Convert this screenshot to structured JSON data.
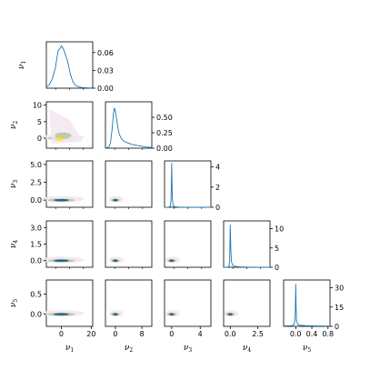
{
  "chart_data": {
    "type": "corner",
    "variables": [
      {
        "label": "ν",
        "sub": "1"
      },
      {
        "label": "ν",
        "sub": "2"
      },
      {
        "label": "ν",
        "sub": "3"
      },
      {
        "label": "ν",
        "sub": "4"
      },
      {
        "label": "ν",
        "sub": "5"
      }
    ],
    "colors": {
      "line": "#1f77b4",
      "density_low": "#f3e6ee",
      "density_mid": "#b7c9a5",
      "density_high": "#1f5f8b",
      "density_peak": "#fde725"
    },
    "diagonal": [
      {
        "variable": 1,
        "xlim": [
          -10,
          21
        ],
        "ylim": [
          0,
          0.078
        ],
        "y_ticks": [
          "0.06",
          "0.03",
          "0.00"
        ],
        "y_tick_values": [
          0.06,
          0.03,
          0.0
        ],
        "curve": [
          [
            -10,
            0.002
          ],
          [
            -8,
            0.006
          ],
          [
            -6,
            0.016
          ],
          [
            -4,
            0.034
          ],
          [
            -3,
            0.05
          ],
          [
            -2,
            0.064
          ],
          [
            -1,
            0.066
          ],
          [
            0,
            0.071
          ],
          [
            1,
            0.068
          ],
          [
            2,
            0.062
          ],
          [
            3,
            0.054
          ],
          [
            4,
            0.047
          ],
          [
            5,
            0.036
          ],
          [
            6,
            0.024
          ],
          [
            7,
            0.016
          ],
          [
            8,
            0.01
          ],
          [
            9,
            0.006
          ],
          [
            10,
            0.004
          ],
          [
            11,
            0.003
          ],
          [
            12,
            0.002
          ],
          [
            14,
            0.001
          ],
          [
            16,
            0.0008
          ],
          [
            18,
            0.0005
          ],
          [
            20,
            0.0003
          ]
        ]
      },
      {
        "variable": 2,
        "xlim": [
          -3,
          11
        ],
        "ylim": [
          0,
          0.75
        ],
        "y_ticks": [
          "0.50",
          "0.25",
          "0.00"
        ],
        "y_tick_values": [
          0.5,
          0.25,
          0.0
        ],
        "curve": [
          [
            -3,
            0.0
          ],
          [
            -2,
            0.02
          ],
          [
            -1.5,
            0.08
          ],
          [
            -1,
            0.3
          ],
          [
            -0.6,
            0.56
          ],
          [
            -0.3,
            0.65
          ],
          [
            0,
            0.6
          ],
          [
            0.4,
            0.46
          ],
          [
            0.8,
            0.32
          ],
          [
            1.2,
            0.22
          ],
          [
            2,
            0.14
          ],
          [
            3,
            0.1
          ],
          [
            4,
            0.08
          ],
          [
            5,
            0.06
          ],
          [
            6,
            0.05
          ],
          [
            7,
            0.04
          ],
          [
            8,
            0.03
          ],
          [
            9,
            0.02
          ],
          [
            10,
            0.015
          ],
          [
            11,
            0.01
          ]
        ]
      },
      {
        "variable": 3,
        "xlim": [
          -1,
          5.5
        ],
        "ylim": [
          0,
          4.6
        ],
        "y_ticks": [
          "4",
          "2",
          "0"
        ],
        "y_tick_values": [
          4,
          2,
          0
        ],
        "curve": [
          [
            -1,
            0.0
          ],
          [
            -0.4,
            0.02
          ],
          [
            -0.2,
            0.1
          ],
          [
            -0.1,
            0.6
          ],
          [
            -0.05,
            2.0
          ],
          [
            0,
            4.4
          ],
          [
            0.05,
            2.2
          ],
          [
            0.1,
            0.8
          ],
          [
            0.2,
            0.2
          ],
          [
            0.4,
            0.06
          ],
          [
            1,
            0.02
          ],
          [
            2,
            0.01
          ],
          [
            3,
            0.0
          ],
          [
            5.5,
            0.0
          ]
        ]
      },
      {
        "variable": 4,
        "xlim": [
          -0.6,
          3.6
        ],
        "ylim": [
          0,
          12
        ],
        "y_ticks": [
          "10",
          "5",
          "0"
        ],
        "y_tick_values": [
          10,
          5,
          0
        ],
        "curve": [
          [
            -0.6,
            0.0
          ],
          [
            -0.2,
            0.05
          ],
          [
            -0.1,
            0.4
          ],
          [
            -0.05,
            2.5
          ],
          [
            0,
            11.0
          ],
          [
            0.05,
            5.0
          ],
          [
            0.1,
            1.6
          ],
          [
            0.2,
            0.6
          ],
          [
            0.4,
            0.25
          ],
          [
            0.8,
            0.1
          ],
          [
            1.5,
            0.05
          ],
          [
            2.5,
            0.02
          ],
          [
            3.6,
            0.0
          ]
        ]
      },
      {
        "variable": 5,
        "xlim": [
          -0.3,
          0.85
        ],
        "ylim": [
          0,
          36
        ],
        "y_ticks": [
          "30",
          "15",
          "0"
        ],
        "y_tick_values": [
          30,
          15,
          0
        ],
        "curve": [
          [
            -0.3,
            0.3
          ],
          [
            -0.1,
            0.6
          ],
          [
            -0.05,
            1.2
          ],
          [
            -0.02,
            4.0
          ],
          [
            -0.01,
            12.0
          ],
          [
            0,
            33.0
          ],
          [
            0.01,
            14.0
          ],
          [
            0.02,
            5.0
          ],
          [
            0.05,
            1.5
          ],
          [
            0.1,
            0.8
          ],
          [
            0.3,
            0.5
          ],
          [
            0.6,
            0.3
          ],
          [
            0.85,
            0.2
          ]
        ]
      }
    ],
    "x_ticks": [
      {
        "labels": [
          "0",
          "20"
        ],
        "values": [
          0,
          20
        ]
      },
      {
        "labels": [
          "0",
          "8"
        ],
        "values": [
          0,
          8
        ]
      },
      {
        "labels": [
          "0",
          "4"
        ],
        "values": [
          0,
          4
        ]
      },
      {
        "labels": [
          "0.0",
          "2.5"
        ],
        "values": [
          0.0,
          2.5
        ]
      },
      {
        "labels": [
          "0.0",
          "0.4",
          "0.8"
        ],
        "values": [
          0.0,
          0.4,
          0.8
        ]
      }
    ],
    "y_ticks_left": [
      {
        "variable": 2,
        "labels": [
          "10",
          "5",
          "0"
        ],
        "values": [
          10,
          5,
          0
        ]
      },
      {
        "variable": 3,
        "labels": [
          "5.0",
          "2.5",
          "0.0"
        ],
        "values": [
          5.0,
          2.5,
          0.0
        ]
      },
      {
        "variable": 4,
        "labels": [
          "3.0",
          "1.5",
          "0.0"
        ],
        "values": [
          3.0,
          1.5,
          0.0
        ]
      },
      {
        "variable": 5,
        "labels": [
          "0.5",
          "0.0"
        ],
        "values": [
          0.5,
          0.0
        ]
      }
    ],
    "ylims_left": {
      "2": [
        -3,
        11
      ],
      "3": [
        -1,
        5.5
      ],
      "4": [
        -0.6,
        3.6
      ],
      "5": [
        -0.3,
        0.85
      ]
    },
    "grid": false,
    "legend": "none"
  }
}
